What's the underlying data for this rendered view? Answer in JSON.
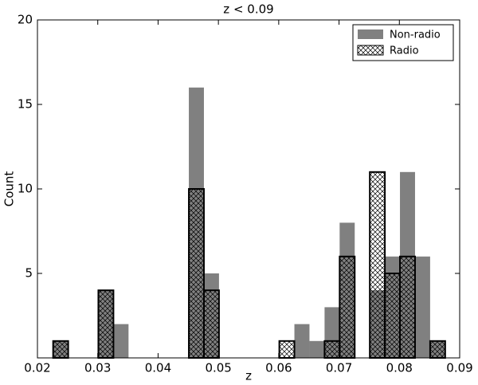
{
  "chart_data": {
    "type": "histogram",
    "title": "z < 0.09",
    "xlabel": "z",
    "ylabel": "Count",
    "bins": [
      0.0226,
      0.0251,
      0.0276,
      0.0301,
      0.0326,
      0.0351,
      0.0376,
      0.0401,
      0.0426,
      0.0451,
      0.0476,
      0.0501,
      0.0526,
      0.0551,
      0.0576,
      0.0601,
      0.0626,
      0.0651,
      0.0676,
      0.0701,
      0.0726,
      0.0751,
      0.0776,
      0.0801,
      0.0826,
      0.0851,
      0.0876
    ],
    "series": [
      {
        "name": "Non-radio",
        "color": "#808080",
        "hatch": false,
        "values": [
          1,
          0,
          0,
          4,
          2,
          0,
          0,
          0,
          0,
          16,
          5,
          0,
          0,
          0,
          0,
          0,
          2,
          1,
          3,
          8,
          0,
          4,
          6,
          11,
          6,
          1
        ]
      },
      {
        "name": "Radio",
        "color": "#000000",
        "hatch": true,
        "values": [
          1,
          0,
          0,
          4,
          0,
          0,
          0,
          0,
          0,
          10,
          4,
          0,
          0,
          0,
          0,
          1,
          0,
          0,
          1,
          6,
          0,
          11,
          5,
          6,
          0,
          1
        ]
      }
    ],
    "xlim": [
      0.02,
      0.09
    ],
    "xticks": [
      0.02,
      0.03,
      0.04,
      0.05,
      0.06,
      0.07,
      0.08,
      0.09
    ],
    "ylim": [
      0,
      20
    ],
    "yticks": [
      5,
      10,
      15,
      20
    ],
    "legend": "upper right"
  }
}
